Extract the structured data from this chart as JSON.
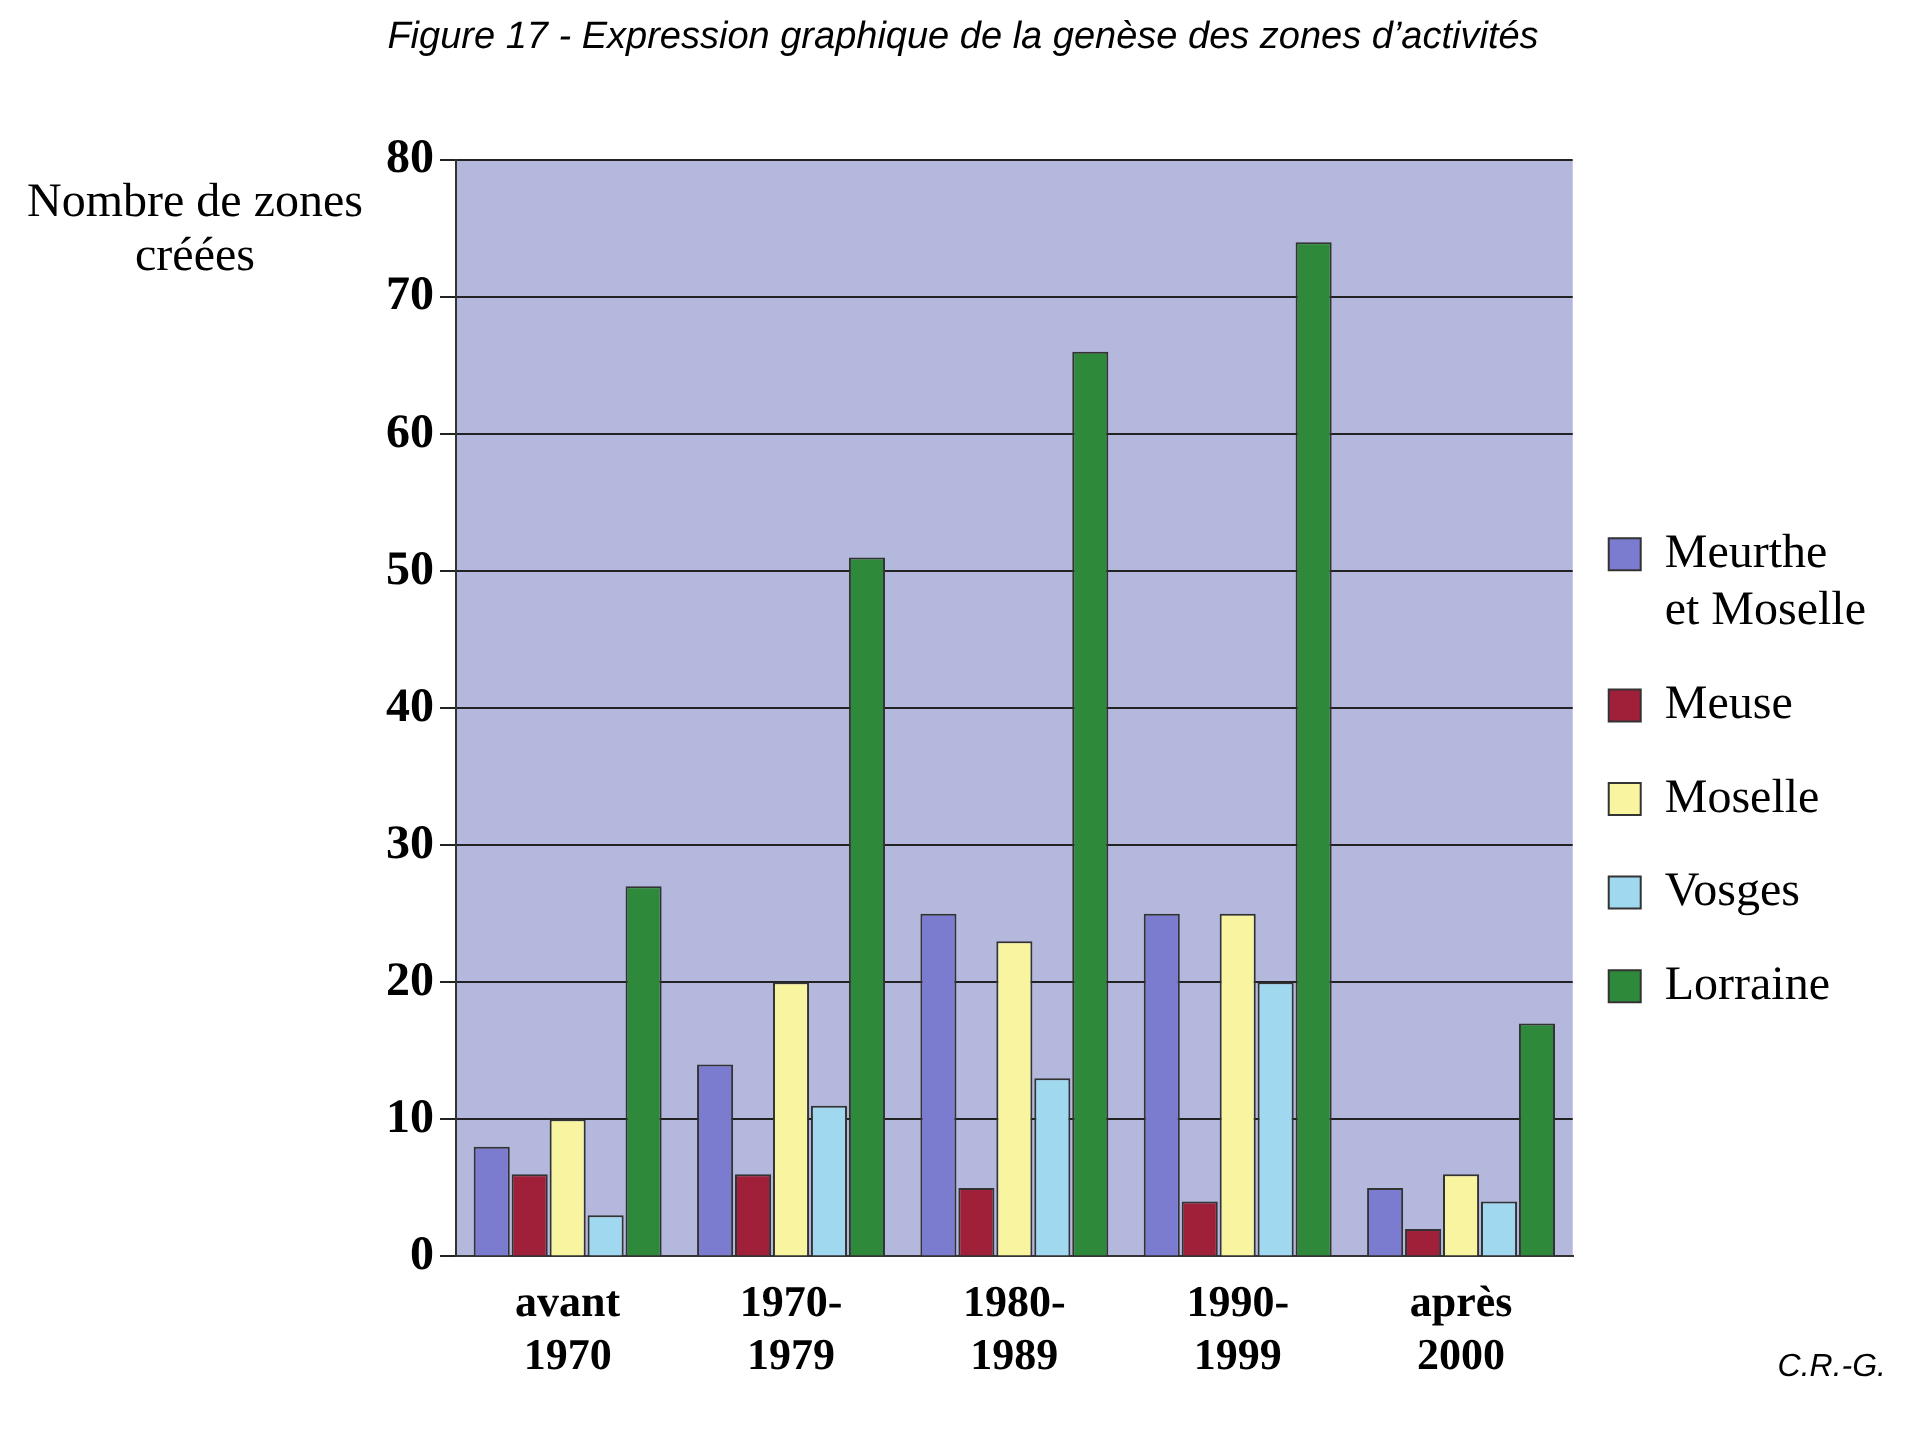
{
  "chart_data": {
    "type": "bar",
    "title": "Figure 17 - Expression graphique de la genèse des zones d’activités",
    "ylabel": "Nombre de zones créées",
    "categories": [
      "avant 1970",
      "1970-1979",
      "1980-1989",
      "1990-1999",
      "après 2000"
    ],
    "series": [
      {
        "name": "Meurthe et Moselle",
        "color": "#7b7bd0",
        "values": [
          8,
          14,
          25,
          25,
          5
        ]
      },
      {
        "name": "Meuse",
        "color": "#a0203a",
        "values": [
          6,
          6,
          5,
          4,
          2
        ]
      },
      {
        "name": "Moselle",
        "color": "#f8f4a0",
        "values": [
          10,
          20,
          23,
          25,
          6
        ]
      },
      {
        "name": "Vosges",
        "color": "#a0d8f0",
        "values": [
          3,
          11,
          13,
          20,
          4
        ]
      },
      {
        "name": "Lorraine",
        "color": "#2e8a3a",
        "values": [
          27,
          51,
          66,
          74,
          17
        ]
      }
    ],
    "ylim": [
      0,
      80
    ],
    "yticks": [
      0,
      10,
      20,
      30,
      40,
      50,
      60,
      70,
      80
    ],
    "grid": "y",
    "legend": "right",
    "annotations": [
      "C.R.-G."
    ]
  }
}
